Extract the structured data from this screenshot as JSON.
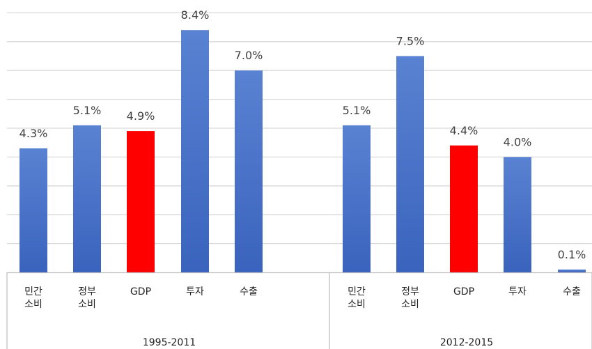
{
  "chart_data": {
    "type": "bar",
    "groups": [
      {
        "label": "1995-2011",
        "bars": [
          {
            "category": [
              "민간",
              "소비"
            ],
            "value": 4.3,
            "label": "4.3%",
            "highlight": false
          },
          {
            "category": [
              "정부",
              "소비"
            ],
            "value": 5.1,
            "label": "5.1%",
            "highlight": false
          },
          {
            "category": [
              "GDP"
            ],
            "value": 4.9,
            "label": "4.9%",
            "highlight": true
          },
          {
            "category": [
              "투자"
            ],
            "value": 8.4,
            "label": "8.4%",
            "highlight": false
          },
          {
            "category": [
              "수출"
            ],
            "value": 7.0,
            "label": "7.0%",
            "highlight": false
          }
        ]
      },
      {
        "label": "2012-2015",
        "bars": [
          {
            "category": [
              "민간",
              "소비"
            ],
            "value": 5.1,
            "label": "5.1%",
            "highlight": false
          },
          {
            "category": [
              "정부",
              "소비"
            ],
            "value": 7.5,
            "label": "7.5%",
            "highlight": false
          },
          {
            "category": [
              "GDP"
            ],
            "value": 4.4,
            "label": "4.4%",
            "highlight": true
          },
          {
            "category": [
              "투자"
            ],
            "value": 4.0,
            "label": "4.0%",
            "highlight": false
          },
          {
            "category": [
              "수출"
            ],
            "value": 0.1,
            "label": "0.1%",
            "highlight": false
          }
        ]
      }
    ],
    "ylim": [
      0,
      9
    ],
    "grid": true,
    "colors": {
      "bar_top": "#5a82d2",
      "bar_bottom": "#3a63bd",
      "highlight": "#ff0000",
      "grid": "#d9d9d9",
      "axis": "#bfbfbf"
    }
  }
}
